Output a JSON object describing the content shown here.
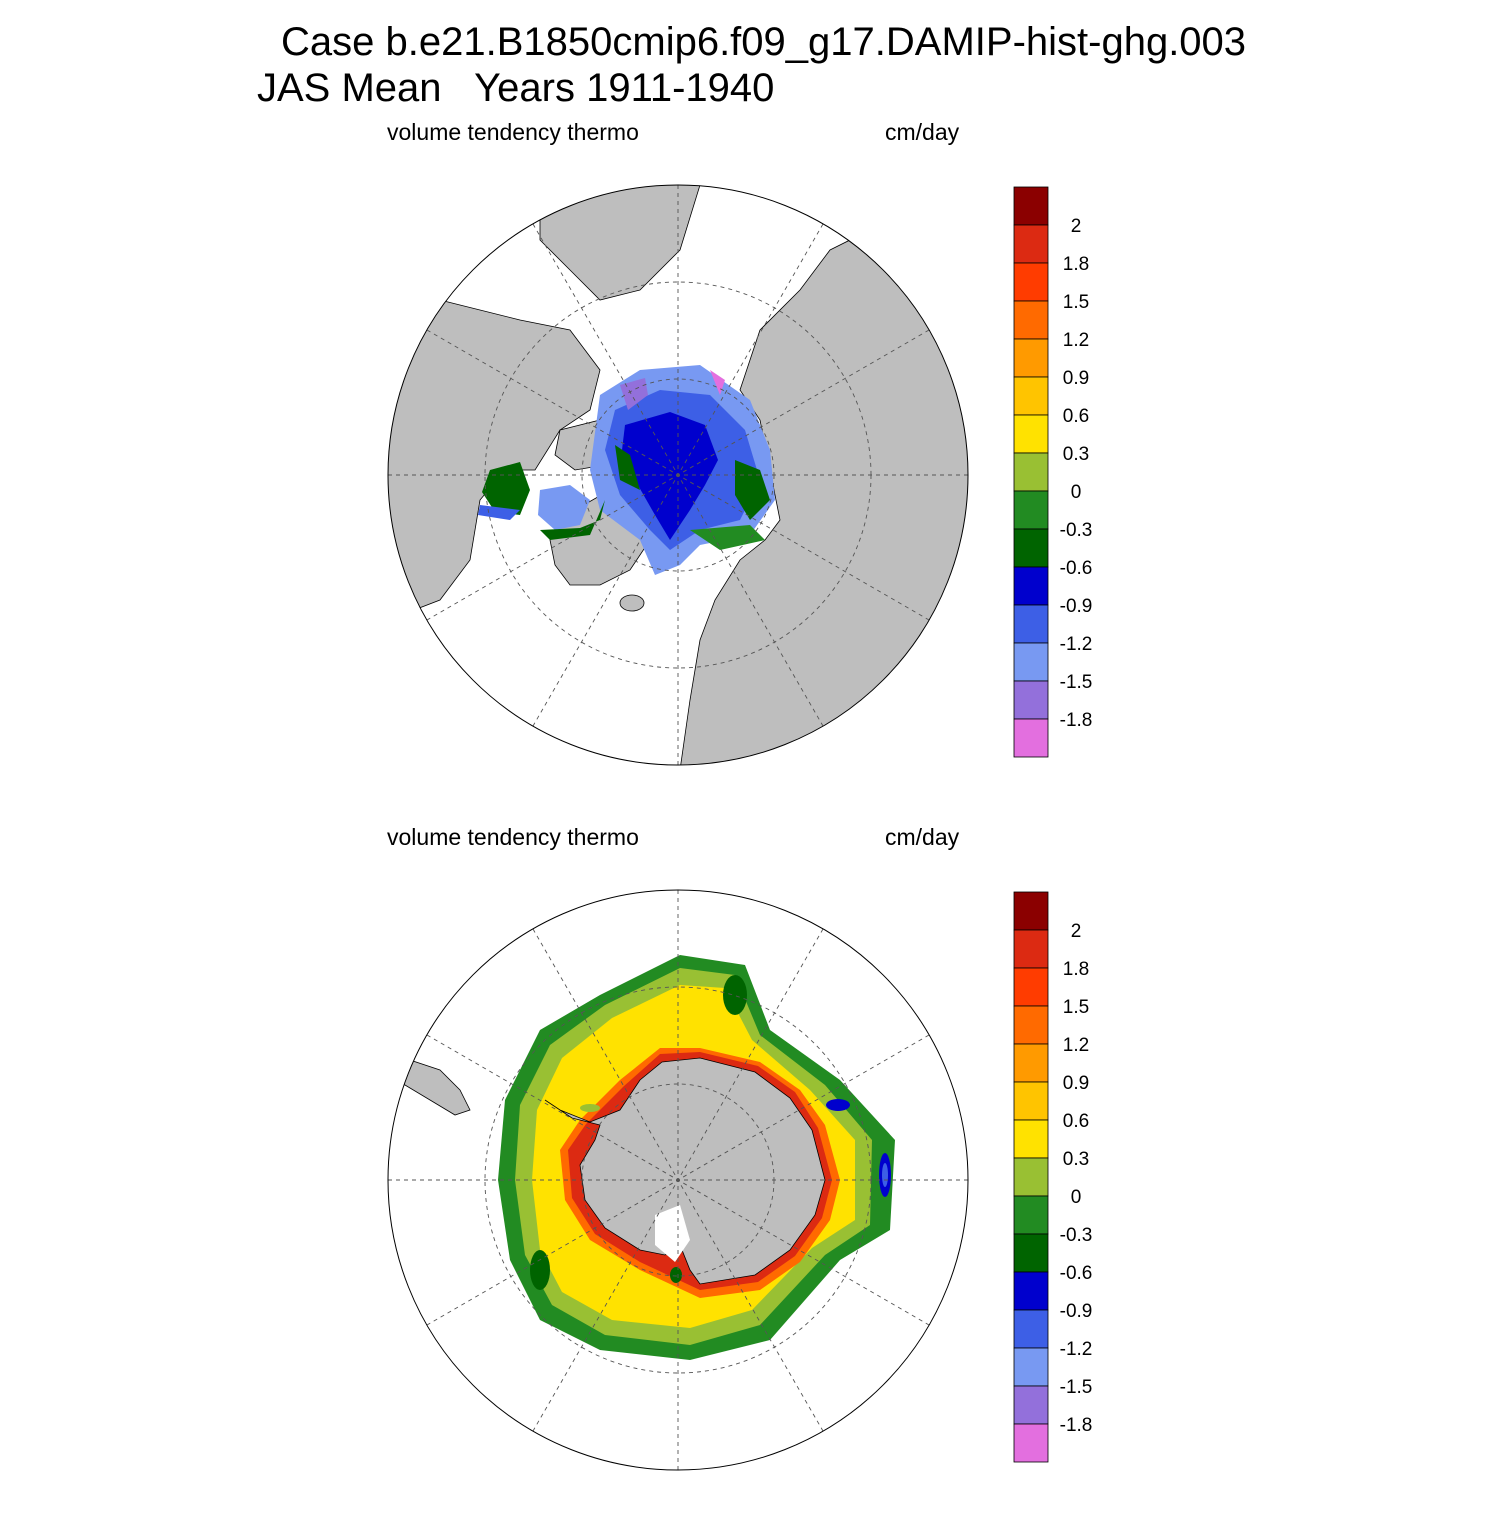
{
  "title": {
    "line1": "Case b.e21.B1850cmip6.f09_g17.DAMIP-hist-ghg.003",
    "line2": "JAS Mean   Years 1911-1940"
  },
  "panels": [
    {
      "id": "north",
      "hemisphere": "Northern Hemisphere (Arctic)",
      "left_label": "volume tendency thermo",
      "right_label": "cm/day"
    },
    {
      "id": "south",
      "hemisphere": "Southern Hemisphere (Antarctic)",
      "left_label": "volume tendency thermo",
      "right_label": "cm/day"
    }
  ],
  "colorbar": {
    "labels": [
      "2",
      "1.8",
      "1.5",
      "1.2",
      "0.9",
      "0.6",
      "0.3",
      "0",
      "-0.3",
      "-0.6",
      "-0.9",
      "-1.2",
      "-1.5",
      "-1.8"
    ],
    "colors": [
      "#8b0000",
      "#dc2a12",
      "#ff3c00",
      "#ff6a00",
      "#ff9a00",
      "#ffc400",
      "#ffe200",
      "#99c033",
      "#228b22",
      "#006400",
      "#0000cd",
      "#3d5fe6",
      "#7899f2",
      "#9370db",
      "#e36fdf"
    ]
  },
  "colors": {
    "land": "#bebebe",
    "ocean": "#ffffff",
    "grid": "#555555"
  }
}
